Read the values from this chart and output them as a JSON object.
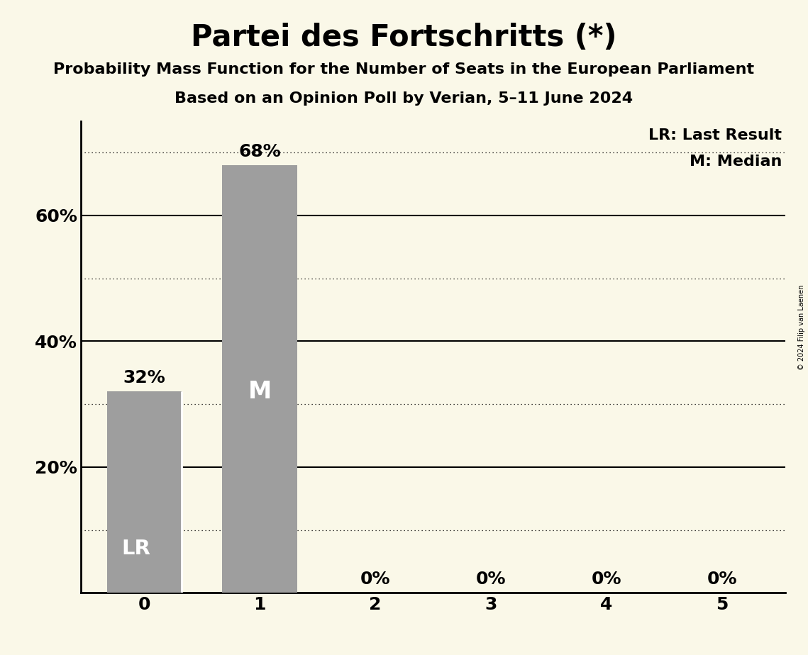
{
  "title": "Partei des Fortschritts (*)",
  "subtitle1": "Probability Mass Function for the Number of Seats in the European Parliament",
  "subtitle2": "Based on an Opinion Poll by Verian, 5–11 June 2024",
  "copyright": "© 2024 Filip van Laenen",
  "categories": [
    0,
    1,
    2,
    3,
    4,
    5
  ],
  "values": [
    0.32,
    0.68,
    0.0,
    0.0,
    0.0,
    0.0
  ],
  "bar_color": "#9e9e9e",
  "background_color": "#faf8e8",
  "last_result_seat": 0,
  "median_seat": 1,
  "labels": [
    "32%",
    "68%",
    "0%",
    "0%",
    "0%",
    "0%"
  ],
  "ylim": [
    0,
    0.75
  ],
  "ylabel_ticks": [
    0.2,
    0.4,
    0.6
  ],
  "ylabel_labels": [
    "20%",
    "40%",
    "60%"
  ],
  "dotted_gridlines": [
    0.1,
    0.3,
    0.5,
    0.7
  ],
  "solid_gridlines": [
    0.2,
    0.4,
    0.6
  ],
  "legend_lr": "LR: Last Result",
  "legend_m": "M: Median",
  "title_fontsize": 30,
  "subtitle_fontsize": 16,
  "label_fontsize": 18,
  "tick_fontsize": 18,
  "legend_fontsize": 16,
  "bar_width": 0.65
}
